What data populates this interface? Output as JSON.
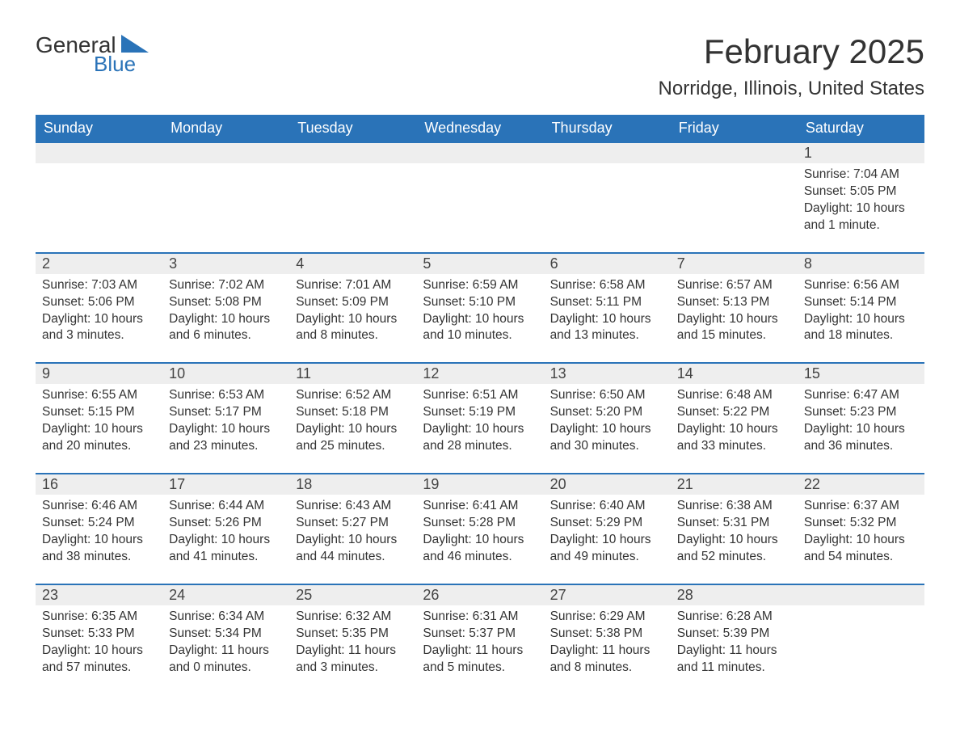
{
  "brand": {
    "word1": "General",
    "word2": "Blue",
    "color_primary": "#2a73b8"
  },
  "title": "February 2025",
  "location": "Norridge, Illinois, United States",
  "colors": {
    "header_bg": "#2a73b8",
    "header_text": "#ffffff",
    "daynum_bg": "#eeeeee",
    "border_top": "#2a73b8",
    "body_text": "#333333",
    "page_bg": "#ffffff"
  },
  "typography": {
    "title_fontsize": 42,
    "location_fontsize": 24,
    "header_fontsize": 18,
    "daynum_fontsize": 18,
    "cell_fontsize": 15.5,
    "font_family": "Segoe UI"
  },
  "layout": {
    "columns": 7,
    "rows": 5
  },
  "weekdays": [
    "Sunday",
    "Monday",
    "Tuesday",
    "Wednesday",
    "Thursday",
    "Friday",
    "Saturday"
  ],
  "weeks": [
    [
      null,
      null,
      null,
      null,
      null,
      null,
      {
        "day": "1",
        "sunrise": "Sunrise: 7:04 AM",
        "sunset": "Sunset: 5:05 PM",
        "daylight": "Daylight: 10 hours and 1 minute."
      }
    ],
    [
      {
        "day": "2",
        "sunrise": "Sunrise: 7:03 AM",
        "sunset": "Sunset: 5:06 PM",
        "daylight": "Daylight: 10 hours and 3 minutes."
      },
      {
        "day": "3",
        "sunrise": "Sunrise: 7:02 AM",
        "sunset": "Sunset: 5:08 PM",
        "daylight": "Daylight: 10 hours and 6 minutes."
      },
      {
        "day": "4",
        "sunrise": "Sunrise: 7:01 AM",
        "sunset": "Sunset: 5:09 PM",
        "daylight": "Daylight: 10 hours and 8 minutes."
      },
      {
        "day": "5",
        "sunrise": "Sunrise: 6:59 AM",
        "sunset": "Sunset: 5:10 PM",
        "daylight": "Daylight: 10 hours and 10 minutes."
      },
      {
        "day": "6",
        "sunrise": "Sunrise: 6:58 AM",
        "sunset": "Sunset: 5:11 PM",
        "daylight": "Daylight: 10 hours and 13 minutes."
      },
      {
        "day": "7",
        "sunrise": "Sunrise: 6:57 AM",
        "sunset": "Sunset: 5:13 PM",
        "daylight": "Daylight: 10 hours and 15 minutes."
      },
      {
        "day": "8",
        "sunrise": "Sunrise: 6:56 AM",
        "sunset": "Sunset: 5:14 PM",
        "daylight": "Daylight: 10 hours and 18 minutes."
      }
    ],
    [
      {
        "day": "9",
        "sunrise": "Sunrise: 6:55 AM",
        "sunset": "Sunset: 5:15 PM",
        "daylight": "Daylight: 10 hours and 20 minutes."
      },
      {
        "day": "10",
        "sunrise": "Sunrise: 6:53 AM",
        "sunset": "Sunset: 5:17 PM",
        "daylight": "Daylight: 10 hours and 23 minutes."
      },
      {
        "day": "11",
        "sunrise": "Sunrise: 6:52 AM",
        "sunset": "Sunset: 5:18 PM",
        "daylight": "Daylight: 10 hours and 25 minutes."
      },
      {
        "day": "12",
        "sunrise": "Sunrise: 6:51 AM",
        "sunset": "Sunset: 5:19 PM",
        "daylight": "Daylight: 10 hours and 28 minutes."
      },
      {
        "day": "13",
        "sunrise": "Sunrise: 6:50 AM",
        "sunset": "Sunset: 5:20 PM",
        "daylight": "Daylight: 10 hours and 30 minutes."
      },
      {
        "day": "14",
        "sunrise": "Sunrise: 6:48 AM",
        "sunset": "Sunset: 5:22 PM",
        "daylight": "Daylight: 10 hours and 33 minutes."
      },
      {
        "day": "15",
        "sunrise": "Sunrise: 6:47 AM",
        "sunset": "Sunset: 5:23 PM",
        "daylight": "Daylight: 10 hours and 36 minutes."
      }
    ],
    [
      {
        "day": "16",
        "sunrise": "Sunrise: 6:46 AM",
        "sunset": "Sunset: 5:24 PM",
        "daylight": "Daylight: 10 hours and 38 minutes."
      },
      {
        "day": "17",
        "sunrise": "Sunrise: 6:44 AM",
        "sunset": "Sunset: 5:26 PM",
        "daylight": "Daylight: 10 hours and 41 minutes."
      },
      {
        "day": "18",
        "sunrise": "Sunrise: 6:43 AM",
        "sunset": "Sunset: 5:27 PM",
        "daylight": "Daylight: 10 hours and 44 minutes."
      },
      {
        "day": "19",
        "sunrise": "Sunrise: 6:41 AM",
        "sunset": "Sunset: 5:28 PM",
        "daylight": "Daylight: 10 hours and 46 minutes."
      },
      {
        "day": "20",
        "sunrise": "Sunrise: 6:40 AM",
        "sunset": "Sunset: 5:29 PM",
        "daylight": "Daylight: 10 hours and 49 minutes."
      },
      {
        "day": "21",
        "sunrise": "Sunrise: 6:38 AM",
        "sunset": "Sunset: 5:31 PM",
        "daylight": "Daylight: 10 hours and 52 minutes."
      },
      {
        "day": "22",
        "sunrise": "Sunrise: 6:37 AM",
        "sunset": "Sunset: 5:32 PM",
        "daylight": "Daylight: 10 hours and 54 minutes."
      }
    ],
    [
      {
        "day": "23",
        "sunrise": "Sunrise: 6:35 AM",
        "sunset": "Sunset: 5:33 PM",
        "daylight": "Daylight: 10 hours and 57 minutes."
      },
      {
        "day": "24",
        "sunrise": "Sunrise: 6:34 AM",
        "sunset": "Sunset: 5:34 PM",
        "daylight": "Daylight: 11 hours and 0 minutes."
      },
      {
        "day": "25",
        "sunrise": "Sunrise: 6:32 AM",
        "sunset": "Sunset: 5:35 PM",
        "daylight": "Daylight: 11 hours and 3 minutes."
      },
      {
        "day": "26",
        "sunrise": "Sunrise: 6:31 AM",
        "sunset": "Sunset: 5:37 PM",
        "daylight": "Daylight: 11 hours and 5 minutes."
      },
      {
        "day": "27",
        "sunrise": "Sunrise: 6:29 AM",
        "sunset": "Sunset: 5:38 PM",
        "daylight": "Daylight: 11 hours and 8 minutes."
      },
      {
        "day": "28",
        "sunrise": "Sunrise: 6:28 AM",
        "sunset": "Sunset: 5:39 PM",
        "daylight": "Daylight: 11 hours and 11 minutes."
      },
      null
    ]
  ]
}
